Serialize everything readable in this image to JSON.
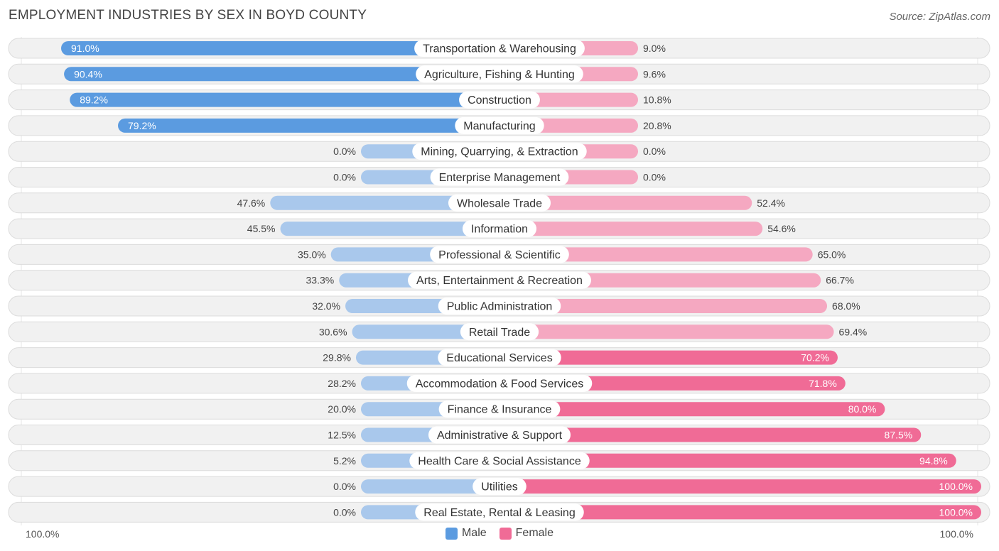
{
  "chart_data": {
    "type": "bar",
    "title": "EMPLOYMENT INDUSTRIES BY SEX IN BOYD COUNTY",
    "source": "Source: ZipAtlas.com",
    "categories": [
      "Transportation & Warehousing",
      "Agriculture, Fishing & Hunting",
      "Construction",
      "Manufacturing",
      "Mining, Quarrying, & Extraction",
      "Enterprise Management",
      "Wholesale Trade",
      "Information",
      "Professional & Scientific",
      "Arts, Entertainment & Recreation",
      "Public Administration",
      "Retail Trade",
      "Educational Services",
      "Accommodation & Food Services",
      "Finance & Insurance",
      "Administrative & Support",
      "Health Care & Social Assistance",
      "Utilities",
      "Real Estate, Rental & Leasing"
    ],
    "series": [
      {
        "name": "Male",
        "values": [
          91.0,
          90.4,
          89.2,
          79.2,
          0.0,
          0.0,
          47.6,
          45.5,
          35.0,
          33.3,
          32.0,
          30.6,
          29.8,
          28.2,
          20.0,
          12.5,
          5.2,
          0.0,
          0.0
        ],
        "labels": [
          "91.0%",
          "90.4%",
          "89.2%",
          "79.2%",
          "0.0%",
          "0.0%",
          "47.6%",
          "45.5%",
          "35.0%",
          "33.3%",
          "32.0%",
          "30.6%",
          "29.8%",
          "28.2%",
          "20.0%",
          "12.5%",
          "5.2%",
          "0.0%",
          "0.0%"
        ]
      },
      {
        "name": "Female",
        "values": [
          9.0,
          9.6,
          10.8,
          20.8,
          0.0,
          0.0,
          52.4,
          54.6,
          65.0,
          66.7,
          68.0,
          69.4,
          70.2,
          71.8,
          80.0,
          87.5,
          94.8,
          100.0,
          100.0
        ],
        "labels": [
          "9.0%",
          "9.6%",
          "10.8%",
          "20.8%",
          "0.0%",
          "0.0%",
          "52.4%",
          "54.6%",
          "65.0%",
          "66.7%",
          "68.0%",
          "69.4%",
          "70.2%",
          "71.8%",
          "80.0%",
          "87.5%",
          "94.8%",
          "100.0%",
          "100.0%"
        ]
      }
    ],
    "axis_left_label": "100.0%",
    "axis_right_label": "100.0%",
    "xlim": [
      0,
      100
    ],
    "legend_position": "bottom-center",
    "colors": {
      "male_strong": "#5b9be0",
      "male_light": "#a9c8ec",
      "female_strong": "#f06b96",
      "female_light": "#f5a8c1",
      "row_bg": "#f1f1f1",
      "row_border": "#dcdcdc"
    }
  }
}
